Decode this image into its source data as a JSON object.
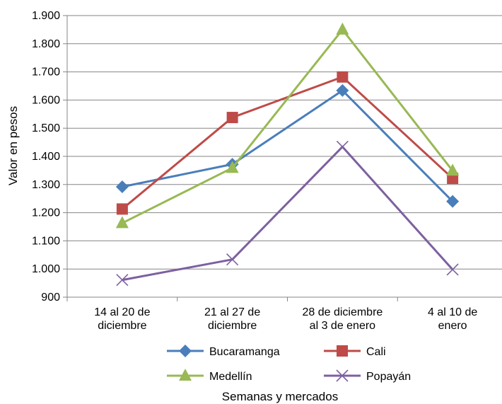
{
  "chart_data": {
    "type": "line",
    "categories": [
      [
        "14 al 20 de",
        "diciembre"
      ],
      [
        "21 al 27 de",
        "diciembre"
      ],
      [
        "28 de diciembre",
        "al 3 de enero"
      ],
      [
        "4 al 10 de",
        "enero"
      ]
    ],
    "series": [
      {
        "name": "Bucaramanga",
        "values": [
          1292,
          1372,
          1634,
          1240
        ],
        "color": "#4a7ebb",
        "marker": "diamond"
      },
      {
        "name": "Cali",
        "values": [
          1213,
          1538,
          1682,
          1322
        ],
        "color": "#be4b48",
        "marker": "square"
      },
      {
        "name": "Medellín",
        "values": [
          1163,
          1359,
          1850,
          1349
        ],
        "color": "#98b954",
        "marker": "triangle"
      },
      {
        "name": "Popayán",
        "values": [
          961,
          1034,
          1434,
          998
        ],
        "color": "#7d60a0",
        "marker": "x"
      }
    ],
    "title": "",
    "xlabel": "Semanas y mercados",
    "ylabel": "Valor en pesos",
    "ylim": [
      900,
      1900
    ],
    "yticks": [
      900,
      1000,
      1100,
      1200,
      1300,
      1400,
      1500,
      1600,
      1700,
      1800,
      1900
    ],
    "ytick_labels": [
      "900",
      "1.000",
      "1.100",
      "1.200",
      "1.300",
      "1.400",
      "1.500",
      "1.600",
      "1.700",
      "1.800",
      "1.900"
    ],
    "grid": "horizontal",
    "legend_position": "bottom"
  }
}
